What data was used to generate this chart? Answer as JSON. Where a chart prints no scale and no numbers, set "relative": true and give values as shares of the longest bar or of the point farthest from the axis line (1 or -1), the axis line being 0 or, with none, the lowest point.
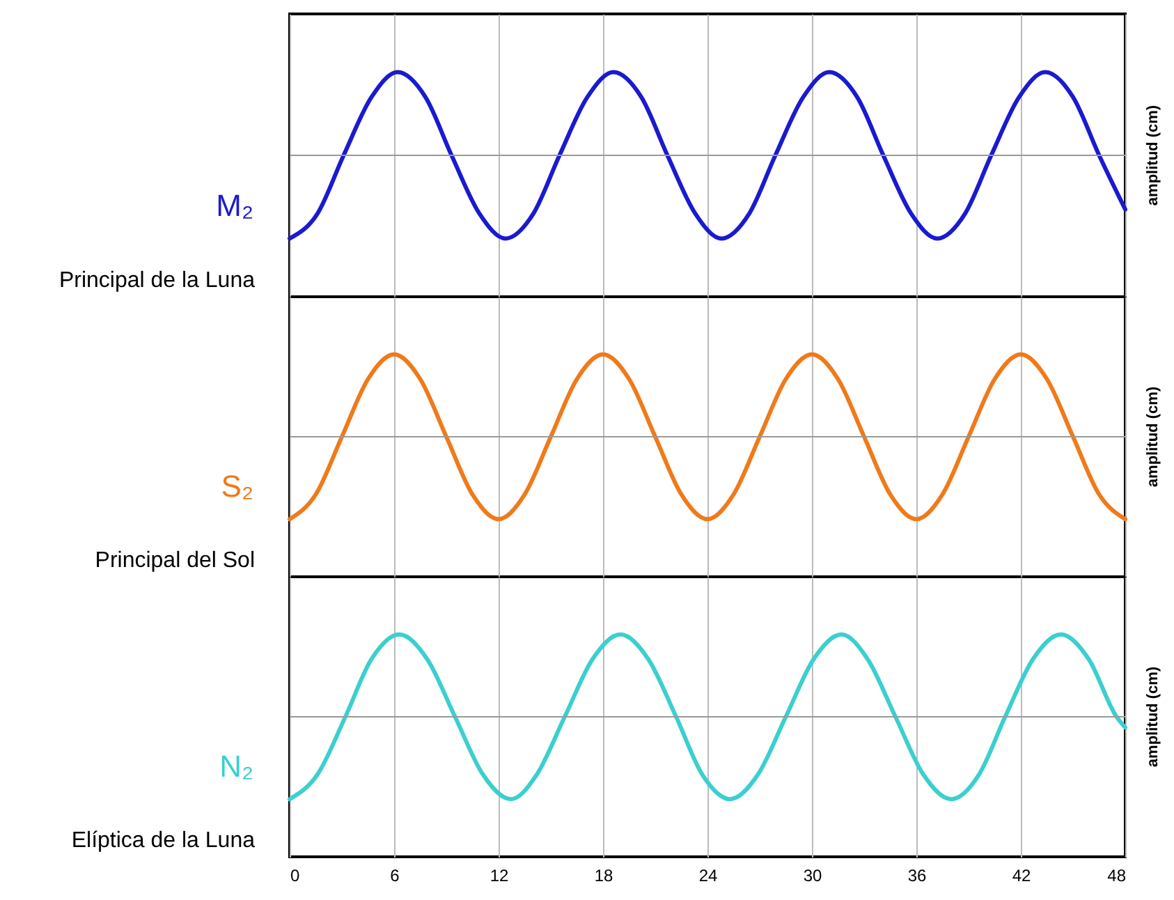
{
  "chart_data": [
    {
      "type": "line",
      "relative": true,
      "ylabel": "amplitud (cm)",
      "annotations": [
        "Principal de la Luna"
      ],
      "xlim": [
        0,
        48
      ],
      "xticks": [
        0,
        6,
        12,
        18,
        24,
        30,
        36,
        42,
        48
      ],
      "tick_labels": false,
      "grid": "x",
      "x": [
        0,
        1.6,
        3.1,
        4.7,
        6.2,
        7.8,
        9.3,
        10.9,
        12.4,
        14,
        15.5,
        17.1,
        18.6,
        20.2,
        21.7,
        23.3,
        24.8,
        26.4,
        27.9,
        29.5,
        31,
        32.6,
        34.1,
        35.7,
        37.2,
        38.8,
        40.3,
        41.9,
        43.4,
        45,
        46.5,
        48
      ],
      "series": [
        {
          "name": "M₂",
          "color": "#1a1ad0",
          "values": [
            -1,
            -0.7,
            0,
            0.7,
            1,
            0.7,
            0,
            -0.7,
            -1,
            -0.7,
            0,
            0.7,
            1,
            0.7,
            0,
            -0.7,
            -1,
            -0.7,
            0,
            0.7,
            1,
            0.7,
            0,
            -0.7,
            -1,
            -0.7,
            0,
            0.7,
            1,
            0.7,
            0,
            -0.65
          ]
        }
      ]
    },
    {
      "type": "line",
      "relative": true,
      "ylabel": "amplitud (cm)",
      "annotations": [
        "Principal del Sol"
      ],
      "xlim": [
        0,
        48
      ],
      "xticks": [
        0,
        6,
        12,
        18,
        24,
        30,
        36,
        42,
        48
      ],
      "tick_labels": false,
      "grid": "x",
      "x": [
        0,
        1.5,
        3,
        4.5,
        6,
        7.5,
        9,
        10.5,
        12,
        13.5,
        15,
        16.5,
        18,
        19.5,
        21,
        22.5,
        24,
        25.5,
        27,
        28.5,
        30,
        31.5,
        33,
        34.5,
        36,
        37.5,
        39,
        40.5,
        42,
        43.5,
        45,
        46.5,
        48
      ],
      "series": [
        {
          "name": "S₂",
          "color": "#f07a1a",
          "values": [
            -1,
            -0.7,
            0,
            0.7,
            1,
            0.7,
            0,
            -0.7,
            -1,
            -0.7,
            0,
            0.7,
            1,
            0.7,
            0,
            -0.7,
            -1,
            -0.7,
            0,
            0.7,
            1,
            0.7,
            0,
            -0.7,
            -1,
            -0.7,
            0,
            0.7,
            1,
            0.7,
            0,
            -0.7,
            -1
          ]
        }
      ]
    },
    {
      "type": "line",
      "relative": true,
      "ylabel": "amplitud (cm)",
      "annotations": [
        "Elíptica de la Luna"
      ],
      "xlim": [
        0,
        48
      ],
      "xticks": [
        0,
        6,
        12,
        18,
        24,
        30,
        36,
        42,
        48
      ],
      "tick_labels": "x",
      "grid": "x",
      "x": [
        0,
        1.6,
        3.2,
        4.7,
        6.3,
        7.9,
        9.5,
        11.1,
        12.7,
        14.2,
        15.8,
        17.4,
        19,
        20.6,
        22.2,
        23.7,
        25.3,
        26.9,
        28.5,
        30.1,
        31.7,
        33.2,
        34.8,
        36.4,
        38,
        39.6,
        41.1,
        42.7,
        44.3,
        45.9,
        47.5,
        48
      ],
      "series": [
        {
          "name": "N₂",
          "color": "#3ccfcf",
          "values": [
            -1,
            -0.7,
            0,
            0.7,
            1,
            0.7,
            0,
            -0.7,
            -1,
            -0.7,
            0,
            0.7,
            1,
            0.7,
            0,
            -0.7,
            -1,
            -0.7,
            0,
            0.7,
            1,
            0.7,
            0,
            -0.7,
            -1,
            -0.7,
            0,
            0.7,
            1,
            0.7,
            0,
            -0.13
          ]
        }
      ]
    }
  ]
}
